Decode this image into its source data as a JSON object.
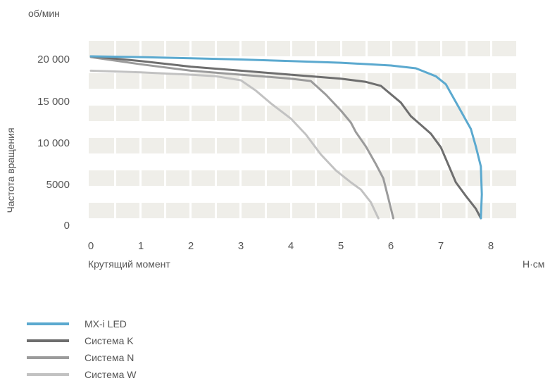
{
  "chart_data": {
    "type": "line",
    "y_unit": "об/мин",
    "y_label": "Частота вращения",
    "x_label": "Крутящий момент",
    "x_unit": "Н·см",
    "xlim": [
      0,
      8.5
    ],
    "ylim": [
      0,
      21000
    ],
    "x_ticks": [
      "0",
      "1",
      "2",
      "3",
      "4",
      "5",
      "6",
      "7",
      "8"
    ],
    "y_ticks": [
      "0",
      "5000",
      "10 000",
      "15 000",
      "20 000"
    ],
    "grid": true,
    "legend_position": "bottom-left",
    "series": [
      {
        "name": "MX-i LED",
        "color": "#5ba9cf",
        "points": [
          [
            0,
            20300
          ],
          [
            1,
            20200
          ],
          [
            2,
            20050
          ],
          [
            3,
            19900
          ],
          [
            4,
            19700
          ],
          [
            5,
            19500
          ],
          [
            6,
            19150
          ],
          [
            6.5,
            18800
          ],
          [
            6.9,
            17800
          ],
          [
            7.1,
            16800
          ],
          [
            7.35,
            14000
          ],
          [
            7.6,
            11200
          ],
          [
            7.7,
            9000
          ],
          [
            7.8,
            6500
          ],
          [
            7.82,
            3000
          ],
          [
            7.8,
            0
          ]
        ]
      },
      {
        "name": "Система K",
        "color": "#6e6e6e",
        "points": [
          [
            0,
            20300
          ],
          [
            1,
            19700
          ],
          [
            2,
            19000
          ],
          [
            3,
            18500
          ],
          [
            4,
            18000
          ],
          [
            5,
            17500
          ],
          [
            5.5,
            17100
          ],
          [
            5.8,
            16600
          ],
          [
            6.2,
            14500
          ],
          [
            6.4,
            12800
          ],
          [
            6.6,
            11700
          ],
          [
            6.8,
            10600
          ],
          [
            7,
            8900
          ],
          [
            7.15,
            6700
          ],
          [
            7.3,
            4500
          ],
          [
            7.5,
            2800
          ],
          [
            7.7,
            1200
          ],
          [
            7.8,
            0
          ]
        ]
      },
      {
        "name": "Система N",
        "color": "#9b9b9b",
        "points": [
          [
            0,
            20200
          ],
          [
            1,
            19300
          ],
          [
            2,
            18500
          ],
          [
            3,
            18000
          ],
          [
            4,
            17500
          ],
          [
            4.4,
            17200
          ],
          [
            4.7,
            15500
          ],
          [
            5,
            13500
          ],
          [
            5.2,
            12000
          ],
          [
            5.3,
            10800
          ],
          [
            5.5,
            9000
          ],
          [
            5.7,
            6800
          ],
          [
            5.85,
            5000
          ],
          [
            5.95,
            2500
          ],
          [
            6.05,
            0
          ]
        ]
      },
      {
        "name": "Система W",
        "color": "#c2c2c2",
        "points": [
          [
            0,
            18500
          ],
          [
            1,
            18300
          ],
          [
            2,
            18000
          ],
          [
            2.5,
            17800
          ],
          [
            3,
            17300
          ],
          [
            3.3,
            16000
          ],
          [
            3.6,
            14400
          ],
          [
            4,
            12500
          ],
          [
            4.3,
            10500
          ],
          [
            4.6,
            8000
          ],
          [
            4.9,
            6000
          ],
          [
            5.2,
            4500
          ],
          [
            5.4,
            3600
          ],
          [
            5.6,
            2000
          ],
          [
            5.75,
            0
          ]
        ]
      }
    ]
  }
}
